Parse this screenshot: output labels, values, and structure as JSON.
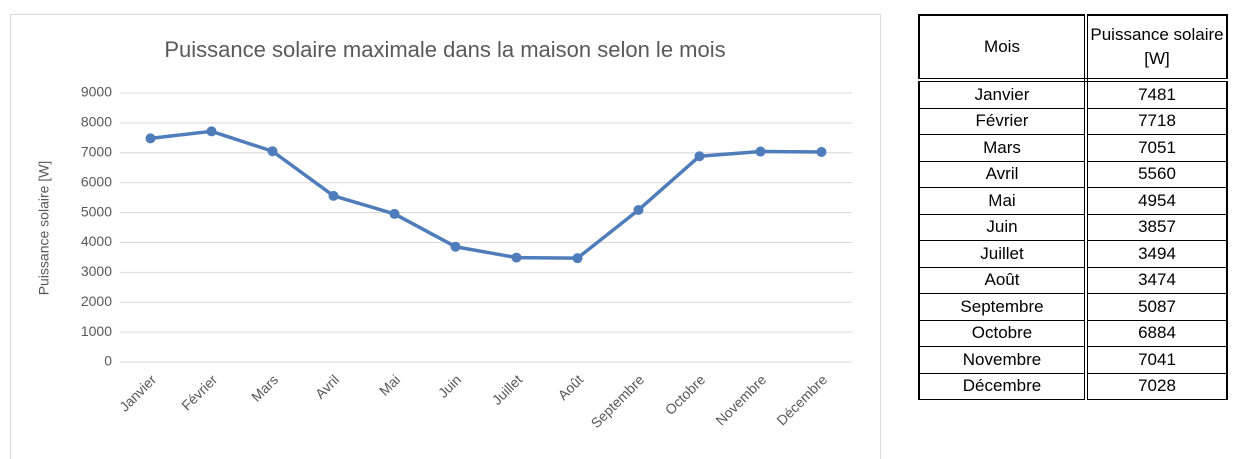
{
  "chart_data": {
    "type": "line",
    "title": "Puissance solaire maximale dans la maison selon le mois",
    "y_label": "Puissance solaire [W]",
    "categories": [
      "Janvier",
      "Février",
      "Mars",
      "Avril",
      "Mai",
      "Juin",
      "Juillet",
      "Août",
      "Septembre",
      "Octobre",
      "Novembre",
      "Décembre"
    ],
    "values": [
      7481,
      7718,
      7051,
      5560,
      4954,
      3857,
      3494,
      3474,
      5087,
      6884,
      7041,
      7028
    ],
    "color": "#4f7cba",
    "ylim": [
      0,
      9000
    ],
    "yticks": [
      0,
      1000,
      2000,
      3000,
      4000,
      5000,
      6000,
      7000,
      8000,
      9000
    ],
    "grid": true
  },
  "table": {
    "headers": [
      "Mois",
      "Puissance solaire [W]"
    ]
  }
}
